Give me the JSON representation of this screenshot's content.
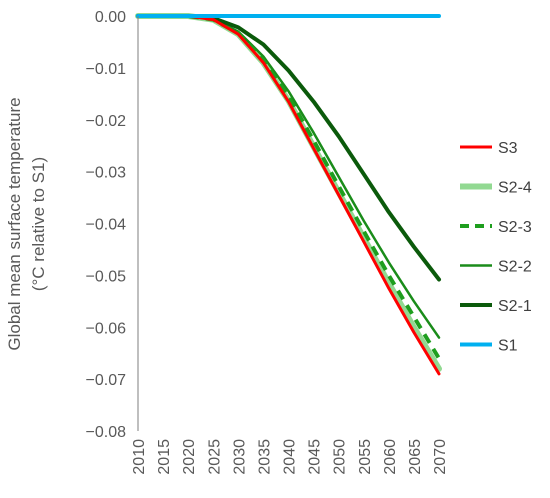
{
  "chart_data": {
    "type": "line",
    "ylabel_lines": [
      "Global mean surface temperature",
      "(°C  relative to S1)"
    ],
    "xlim": [
      2010,
      2070
    ],
    "ylim": [
      -0.08,
      0.0
    ],
    "x_ticks": [
      2010,
      2015,
      2020,
      2025,
      2030,
      2035,
      2040,
      2045,
      2050,
      2055,
      2060,
      2065,
      2070
    ],
    "y_ticks": [
      0.0,
      -0.01,
      -0.02,
      -0.03,
      -0.04,
      -0.05,
      -0.06,
      -0.07,
      -0.08
    ],
    "y_tick_labels": [
      "0.00",
      "−0.01",
      "−0.02",
      "−0.03",
      "−0.04",
      "−0.05",
      "−0.06",
      "−0.07",
      "−0.08"
    ],
    "x": [
      2010,
      2015,
      2020,
      2025,
      2030,
      2035,
      2040,
      2045,
      2050,
      2055,
      2060,
      2065,
      2070
    ],
    "grid": false,
    "legend_position": "right",
    "series": [
      {
        "name": "S3",
        "color": "#ff0000",
        "dash": "solid",
        "width": 3,
        "values": [
          0,
          0,
          0,
          -0.0007,
          -0.0035,
          -0.009,
          -0.0165,
          -0.0255,
          -0.0345,
          -0.0435,
          -0.0525,
          -0.061,
          -0.069
        ]
      },
      {
        "name": "S2-4",
        "color": "#92d992",
        "dash": "solid",
        "width": 6,
        "values": [
          0,
          0,
          0,
          -0.0007,
          -0.0035,
          -0.009,
          -0.0163,
          -0.0252,
          -0.034,
          -0.0428,
          -0.0515,
          -0.06,
          -0.068
        ]
      },
      {
        "name": "S2-3",
        "color": "#1e9e1e",
        "dash": "dashed",
        "width": 4,
        "values": [
          0,
          0,
          0,
          -0.0007,
          -0.0033,
          -0.0085,
          -0.0155,
          -0.024,
          -0.0328,
          -0.0415,
          -0.05,
          -0.058,
          -0.066
        ]
      },
      {
        "name": "S2-2",
        "color": "#1a8c1a",
        "dash": "solid",
        "width": 2.5,
        "values": [
          0,
          0,
          0,
          -0.0006,
          -0.003,
          -0.0078,
          -0.0145,
          -0.0225,
          -0.031,
          -0.0395,
          -0.0475,
          -0.055,
          -0.062
        ]
      },
      {
        "name": "S2-1",
        "color": "#0b5a0b",
        "dash": "solid",
        "width": 4,
        "values": [
          0,
          0,
          0,
          -0.0004,
          -0.0022,
          -0.0055,
          -0.0105,
          -0.0165,
          -0.0232,
          -0.0305,
          -0.0378,
          -0.0445,
          -0.0508
        ]
      },
      {
        "name": "S1",
        "color": "#00b0f0",
        "dash": "solid",
        "width": 4,
        "values": [
          0,
          0,
          0,
          0,
          0,
          0,
          0,
          0,
          0,
          0,
          0,
          0,
          0
        ]
      }
    ]
  }
}
